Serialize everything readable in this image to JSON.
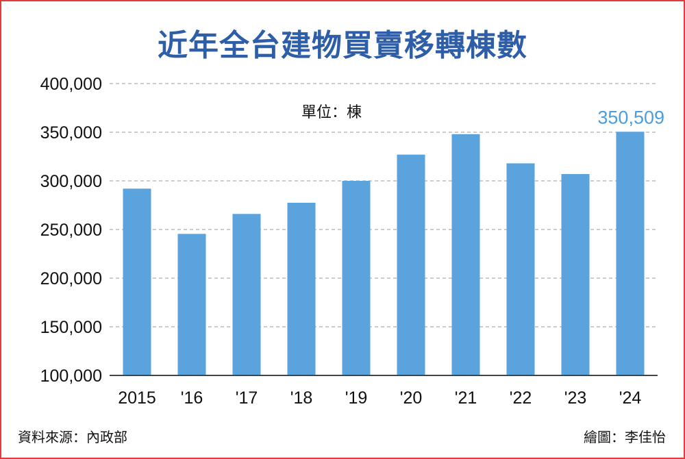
{
  "title": "近年全台建物買賣移轉棟數",
  "unit": "單位：棟",
  "source": "資料來源：內政部",
  "credit": "繪圖：李佳怡",
  "colors": {
    "bar": "#5aa3dd",
    "title": "#2f5ea8",
    "highlight": "#4a9ee0",
    "grid": "#9a9a9a",
    "border": "#e23b3b"
  },
  "chart_data": {
    "type": "bar",
    "categories": [
      "2015",
      "'16",
      "'17",
      "'18",
      "'19",
      "'20",
      "'21",
      "'22",
      "'23",
      "'24"
    ],
    "values": [
      292000,
      245500,
      266000,
      277500,
      300000,
      327000,
      348000,
      318000,
      307000,
      350509
    ],
    "ylim": [
      100000,
      400000
    ],
    "yticks": [
      "100,000",
      "150,000",
      "200,000",
      "250,000",
      "300,000",
      "350,000",
      "400,000"
    ],
    "ytick_values": [
      100000,
      150000,
      200000,
      250000,
      300000,
      350000,
      400000
    ],
    "grid": true,
    "annotation": {
      "category": "'24",
      "text": "350,509"
    },
    "title": "近年全台建物買賣移轉棟數",
    "xlabel": "",
    "ylabel": ""
  }
}
